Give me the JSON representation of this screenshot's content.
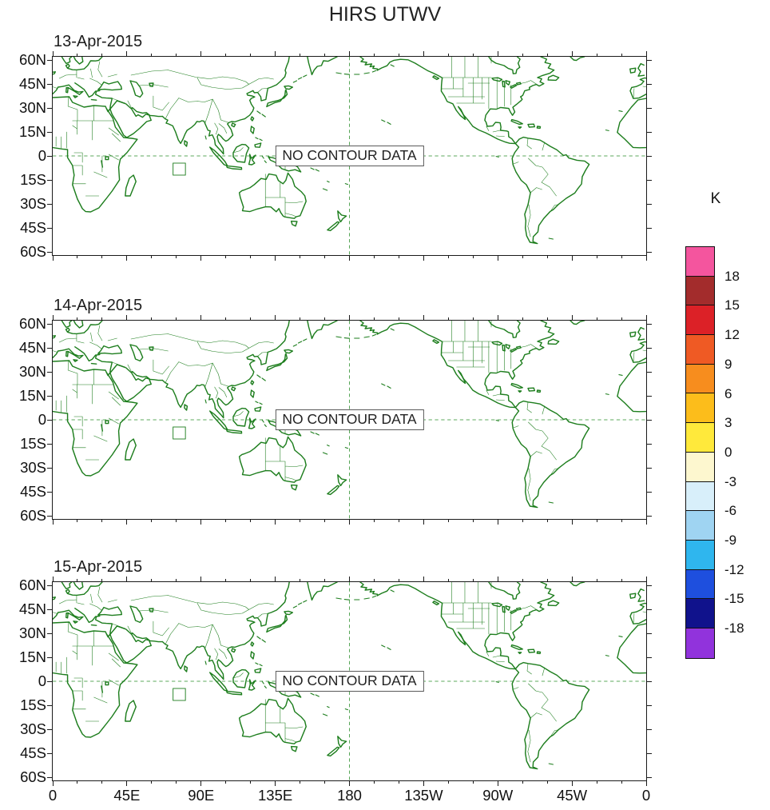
{
  "title": "HIRS UTWV",
  "no_data_text": "NO CONTOUR DATA",
  "panels": [
    {
      "date": "13-Apr-2015"
    },
    {
      "date": "14-Apr-2015"
    },
    {
      "date": "15-Apr-2015"
    }
  ],
  "axes": {
    "lat_ticks": [
      {
        "label": "60N",
        "deg": 60
      },
      {
        "label": "45N",
        "deg": 45
      },
      {
        "label": "30N",
        "deg": 30
      },
      {
        "label": "15N",
        "deg": 15
      },
      {
        "label": "0",
        "deg": 0
      },
      {
        "label": "15S",
        "deg": -15
      },
      {
        "label": "30S",
        "deg": -30
      },
      {
        "label": "45S",
        "deg": -45
      },
      {
        "label": "60S",
        "deg": -60
      }
    ],
    "lon_ticks": [
      {
        "label": "0",
        "deg": 0
      },
      {
        "label": "45E",
        "deg": 45
      },
      {
        "label": "90E",
        "deg": 90
      },
      {
        "label": "135E",
        "deg": 135
      },
      {
        "label": "180",
        "deg": 180
      },
      {
        "label": "135W",
        "deg": 225
      },
      {
        "label": "90W",
        "deg": 270
      },
      {
        "label": "45W",
        "deg": 315
      },
      {
        "label": "0",
        "deg": 360
      }
    ],
    "lon_minor_step_deg": 15
  },
  "colorbar": {
    "title": "K",
    "tick_labels": [
      "18",
      "15",
      "12",
      "9",
      "6",
      "3",
      "0",
      "-3",
      "-6",
      "-9",
      "-12",
      "-15",
      "-18"
    ],
    "cell_colors_top_to_bottom": [
      "#F4559E",
      "#A32C2C",
      "#DC2127",
      "#EF5A24",
      "#F78D1E",
      "#FCBD1B",
      "#FFE93B",
      "#FDF7CF",
      "#D8EFFA",
      "#9FD4F2",
      "#2FB6EE",
      "#1E4FDE",
      "#10128C",
      "#9133DC"
    ]
  },
  "map": {
    "outline_color": "#1E7E1E",
    "gridline_color": "#2A8F2A"
  },
  "chart_data": {
    "type": "map",
    "title": "HIRS UTWV",
    "panels": [
      {
        "date": "13-Apr-2015",
        "status": "NO CONTOUR DATA"
      },
      {
        "date": "14-Apr-2015",
        "status": "NO CONTOUR DATA"
      },
      {
        "date": "15-Apr-2015",
        "status": "NO CONTOUR DATA"
      }
    ],
    "projection": "equirectangular",
    "lon_range": [
      0,
      360
    ],
    "lat_range": [
      -62,
      62
    ],
    "lon_axis_ticks_deg": [
      0,
      45,
      90,
      135,
      180,
      225,
      270,
      315,
      360
    ],
    "lat_axis_ticks_deg": [
      60,
      45,
      30,
      15,
      0,
      -15,
      -30,
      -45,
      -60
    ],
    "gridlines": {
      "equator_dashed": true,
      "meridian_180_dashed": true
    },
    "colorbar": {
      "unit": "K",
      "levels": [
        18,
        15,
        12,
        9,
        6,
        3,
        0,
        -3,
        -6,
        -9,
        -12,
        -15,
        -18
      ],
      "n_cells": 14
    },
    "data_values": "none (NO CONTOUR DATA shown in all three panels)"
  }
}
